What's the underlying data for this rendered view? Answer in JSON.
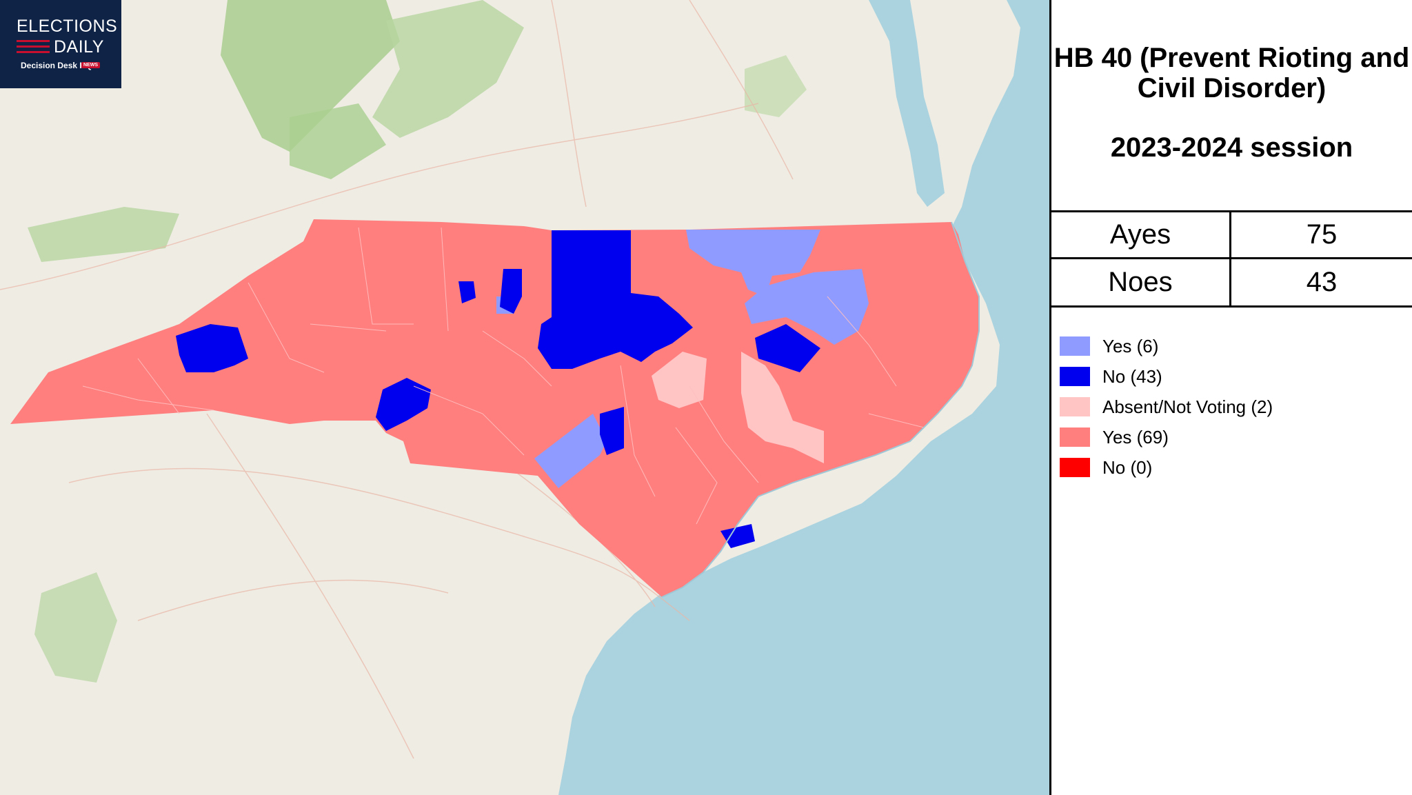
{
  "logo": {
    "line1": "ELECTIONS",
    "line2": "DAILY",
    "line3": "Decision Desk HQ",
    "badge": "NEWS",
    "bg_color": "#0f2346",
    "accent_color": "#c8102e"
  },
  "panel": {
    "title": "HB 40 (Prevent Rioting and Civil Disorder)",
    "session": "2023-2024 session",
    "tally": [
      {
        "label": "Ayes",
        "value": "75"
      },
      {
        "label": "Noes",
        "value": "43"
      }
    ]
  },
  "legend": [
    {
      "label": "Yes (6)",
      "color": "#8f9bff"
    },
    {
      "label": "No (43)",
      "color": "#0000ee"
    },
    {
      "label": "Absent/Not Voting (2)",
      "color": "#ffc4c4"
    },
    {
      "label": "Yes (69)",
      "color": "#ff7f7f"
    },
    {
      "label": "No (0)",
      "color": "#ff0000"
    }
  ],
  "map": {
    "ocean_color": "#aad3df",
    "land_color": "#efece4",
    "forest_color": "#a9cf8f"
  }
}
